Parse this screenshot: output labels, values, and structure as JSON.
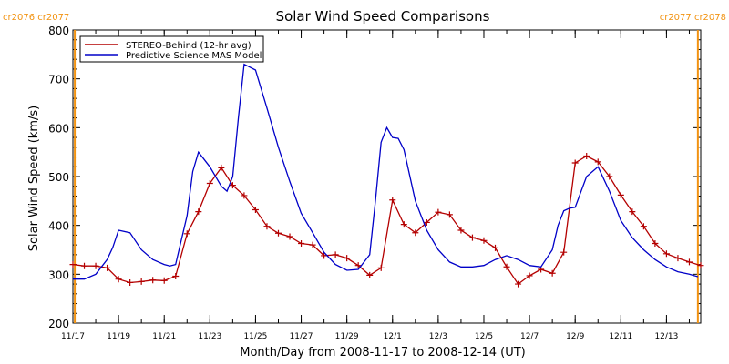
{
  "chart_data": {
    "type": "line",
    "title": "Solar Wind Speed Comparisons",
    "xlabel": "Month/Day from 2008-11-17 to 2008-12-14 (UT)",
    "ylabel": "Solar Wind Speed (km/s)",
    "x_start": "2008-11-17",
    "x_end": "2008-12-14",
    "xlim": [
      "2008-11-17T00:00",
      "2008-12-14T12:00"
    ],
    "ylim": [
      200,
      800
    ],
    "y_ticks": [
      200,
      300,
      400,
      500,
      600,
      700,
      800
    ],
    "x_ticks": [
      {
        "date": "2008-11-17",
        "label": "11/17"
      },
      {
        "date": "2008-11-19",
        "label": "11/19"
      },
      {
        "date": "2008-11-21",
        "label": "11/21"
      },
      {
        "date": "2008-11-23",
        "label": "11/23"
      },
      {
        "date": "2008-11-25",
        "label": "11/25"
      },
      {
        "date": "2008-11-27",
        "label": "11/27"
      },
      {
        "date": "2008-11-29",
        "label": "11/29"
      },
      {
        "date": "2008-12-01",
        "label": "12/1"
      },
      {
        "date": "2008-12-03",
        "label": "12/3"
      },
      {
        "date": "2008-12-05",
        "label": "12/5"
      },
      {
        "date": "2008-12-07",
        "label": "12/7"
      },
      {
        "date": "2008-12-09",
        "label": "12/9"
      },
      {
        "date": "2008-12-11",
        "label": "12/11"
      },
      {
        "date": "2008-12-13",
        "label": "12/13"
      }
    ],
    "legend_position": "top-left",
    "markers": [
      {
        "date": "2008-11-17T02:00",
        "left_label": "cr2076",
        "right_label": "cr2077",
        "label_side": "left",
        "color": "#f29312"
      },
      {
        "date": "2008-12-14T09:00",
        "left_label": "cr2077",
        "right_label": "cr2078",
        "label_side": "right",
        "color": "#f29312"
      }
    ],
    "series": [
      {
        "name": "STEREO-Behind (12-hr avg)",
        "color": "#b40000",
        "marker": "plus",
        "x": [
          "2008-11-17T00:00",
          "2008-11-17T12:00",
          "2008-11-18T00:00",
          "2008-11-18T12:00",
          "2008-11-19T00:00",
          "2008-11-19T12:00",
          "2008-11-20T00:00",
          "2008-11-20T12:00",
          "2008-11-21T00:00",
          "2008-11-21T12:00",
          "2008-11-22T00:00",
          "2008-11-22T12:00",
          "2008-11-23T00:00",
          "2008-11-23T12:00",
          "2008-11-24T00:00",
          "2008-11-24T12:00",
          "2008-11-25T00:00",
          "2008-11-25T12:00",
          "2008-11-26T00:00",
          "2008-11-26T12:00",
          "2008-11-27T00:00",
          "2008-11-27T12:00",
          "2008-11-28T00:00",
          "2008-11-28T12:00",
          "2008-11-29T00:00",
          "2008-11-29T12:00",
          "2008-11-30T00:00",
          "2008-11-30T12:00",
          "2008-12-01T00:00",
          "2008-12-01T12:00",
          "2008-12-02T00:00",
          "2008-12-02T12:00",
          "2008-12-03T00:00",
          "2008-12-03T12:00",
          "2008-12-04T00:00",
          "2008-12-04T12:00",
          "2008-12-05T00:00",
          "2008-12-05T12:00",
          "2008-12-06T00:00",
          "2008-12-06T12:00",
          "2008-12-07T00:00",
          "2008-12-07T12:00",
          "2008-12-08T00:00",
          "2008-12-08T12:00",
          "2008-12-09T00:00",
          "2008-12-09T12:00",
          "2008-12-10T00:00",
          "2008-12-10T12:00",
          "2008-12-11T00:00",
          "2008-12-11T12:00",
          "2008-12-12T00:00",
          "2008-12-12T12:00",
          "2008-12-13T00:00",
          "2008-12-13T12:00",
          "2008-12-14T00:00",
          "2008-12-14T12:00"
        ],
        "y": [
          320,
          317,
          317,
          313,
          290,
          283,
          285,
          288,
          287,
          296,
          383,
          428,
          486,
          518,
          482,
          461,
          432,
          398,
          384,
          377,
          363,
          360,
          338,
          340,
          333,
          318,
          298,
          313,
          452,
          402,
          385,
          406,
          427,
          422,
          390,
          375,
          369,
          354,
          315,
          280,
          297,
          310,
          302,
          345,
          528,
          542,
          530,
          500,
          462,
          428,
          398,
          363,
          342,
          333,
          325,
          318
        ]
      },
      {
        "name": "Predictive Science MAS Model",
        "color": "#0000c8",
        "marker": "none",
        "x": [
          "2008-11-17T00:00",
          "2008-11-17T12:00",
          "2008-11-18T00:00",
          "2008-11-18T06:00",
          "2008-11-18T12:00",
          "2008-11-18T18:00",
          "2008-11-19T00:00",
          "2008-11-19T12:00",
          "2008-11-20T00:00",
          "2008-11-20T12:00",
          "2008-11-21T00:00",
          "2008-11-21T06:00",
          "2008-11-21T12:00",
          "2008-11-22T00:00",
          "2008-11-22T06:00",
          "2008-11-22T12:00",
          "2008-11-23T00:00",
          "2008-11-23T12:00",
          "2008-11-23T18:00",
          "2008-11-24T00:00",
          "2008-11-24T06:00",
          "2008-11-24T12:00",
          "2008-11-25T00:00",
          "2008-11-25T12:00",
          "2008-11-26T00:00",
          "2008-11-26T12:00",
          "2008-11-27T00:00",
          "2008-11-27T12:00",
          "2008-11-28T00:00",
          "2008-11-28T12:00",
          "2008-11-29T00:00",
          "2008-11-29T12:00",
          "2008-11-30T00:00",
          "2008-11-30T06:00",
          "2008-11-30T12:00",
          "2008-11-30T18:00",
          "2008-12-01T00:00",
          "2008-12-01T06:00",
          "2008-12-01T12:00",
          "2008-12-02T00:00",
          "2008-12-02T12:00",
          "2008-12-03T00:00",
          "2008-12-03T12:00",
          "2008-12-04T00:00",
          "2008-12-04T12:00",
          "2008-12-05T00:00",
          "2008-12-05T12:00",
          "2008-12-06T00:00",
          "2008-12-06T12:00",
          "2008-12-07T00:00",
          "2008-12-07T12:00",
          "2008-12-08T00:00",
          "2008-12-08T06:00",
          "2008-12-08T12:00",
          "2008-12-08T18:00",
          "2008-12-09T00:00",
          "2008-12-09T12:00",
          "2008-12-10T00:00",
          "2008-12-10T12:00",
          "2008-12-11T00:00",
          "2008-12-11T12:00",
          "2008-12-12T00:00",
          "2008-12-12T12:00",
          "2008-12-13T00:00",
          "2008-12-13T12:00",
          "2008-12-14T00:00",
          "2008-12-14T09:00"
        ],
        "y": [
          290,
          290,
          300,
          315,
          330,
          355,
          390,
          385,
          350,
          330,
          320,
          317,
          320,
          420,
          510,
          550,
          520,
          480,
          470,
          500,
          620,
          730,
          718,
          640,
          560,
          490,
          425,
          385,
          345,
          320,
          308,
          310,
          340,
          450,
          570,
          600,
          580,
          578,
          555,
          450,
          390,
          350,
          325,
          315,
          315,
          318,
          330,
          338,
          330,
          318,
          315,
          350,
          400,
          430,
          435,
          437,
          500,
          520,
          470,
          410,
          375,
          350,
          330,
          315,
          305,
          300,
          295
        ]
      }
    ]
  }
}
